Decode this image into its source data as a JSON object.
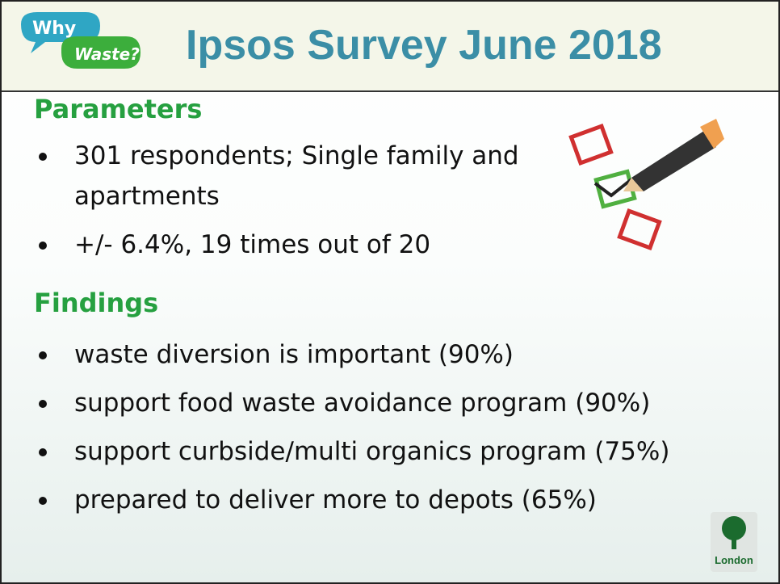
{
  "logo": {
    "why": "Why",
    "waste": "Waste?"
  },
  "title": "Ipsos Survey June 2018",
  "sections": [
    {
      "heading": "Parameters",
      "bullets": [
        "301 respondents; Single family and apartments",
        "+/- 6.4%, 19 times out of 20"
      ]
    },
    {
      "heading": "Findings",
      "bullets": [
        "waste diversion is important (90%)",
        "support food waste avoidance program (90%)",
        "support curbside/multi organics program (75%)",
        "prepared to deliver more to depots (65%)"
      ]
    }
  ],
  "london_logo": "London"
}
